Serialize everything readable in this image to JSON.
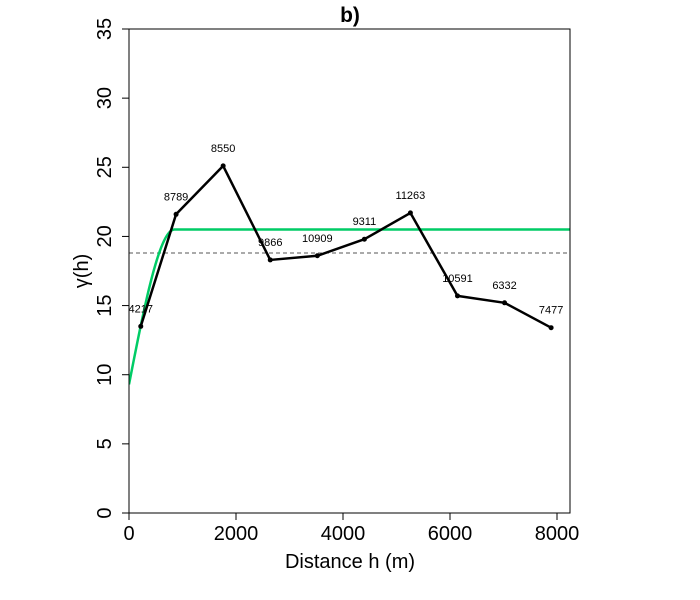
{
  "chart_data": {
    "type": "line",
    "title": "b)",
    "xlabel": "Distance h (m)",
    "ylabel": "γ(h)",
    "xlim": [
      0,
      8000
    ],
    "ylim": [
      0,
      35
    ],
    "xticks": [
      0,
      2000,
      4000,
      6000,
      8000
    ],
    "yticks": [
      0,
      5,
      10,
      15,
      20,
      25,
      30,
      35
    ],
    "grid": false,
    "series": [
      {
        "type": "line-points",
        "color": "#000000",
        "points": [
          {
            "x": 220,
            "y": 13.5,
            "label": "4217"
          },
          {
            "x": 880,
            "y": 21.6,
            "label": "8789"
          },
          {
            "x": 1760,
            "y": 25.1,
            "label": "8550"
          },
          {
            "x": 2640,
            "y": 18.3,
            "label": "9866"
          },
          {
            "x": 3520,
            "y": 18.6,
            "label": "10909"
          },
          {
            "x": 4400,
            "y": 19.8,
            "label": "9311"
          },
          {
            "x": 5260,
            "y": 21.7,
            "label": "11263"
          },
          {
            "x": 6140,
            "y": 15.7,
            "label": "10591"
          },
          {
            "x": 7020,
            "y": 15.2,
            "label": "6332"
          },
          {
            "x": 7890,
            "y": 13.4,
            "label": "7477"
          }
        ]
      },
      {
        "type": "model-curve",
        "color": "#00cc66",
        "nugget": 9.3,
        "sill": 20.5,
        "range": 850
      },
      {
        "type": "reference-line",
        "color": "#555555",
        "y": 18.8
      }
    ]
  }
}
